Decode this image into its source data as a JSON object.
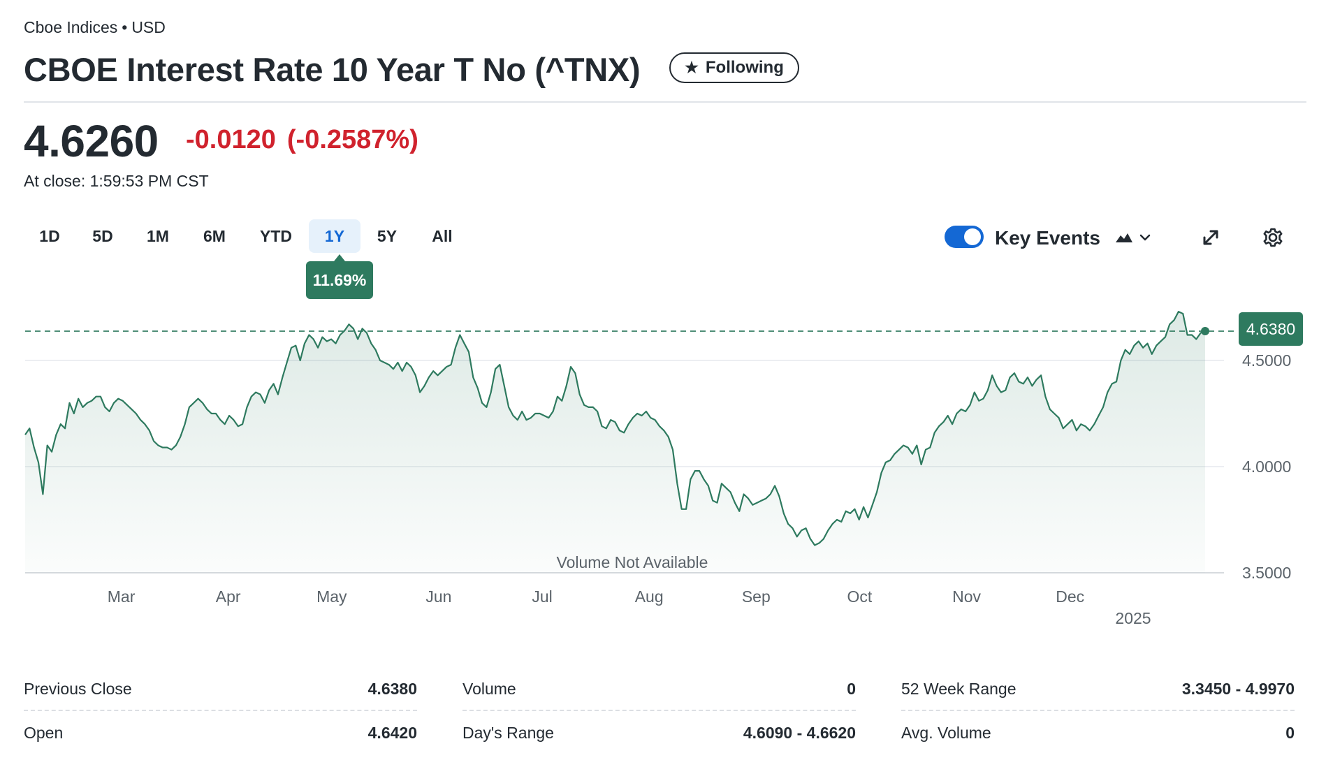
{
  "header": {
    "exchange": "Cboe Indices",
    "currency": "USD",
    "title": "CBOE Interest Rate 10 Year T No (^TNX)",
    "follow_label": "Following"
  },
  "quote": {
    "price": "4.6260",
    "change": "-0.0120",
    "change_percent": "(-0.2587%)",
    "close_time": "At close: 1:59:53 PM CST"
  },
  "range_tabs": [
    "1D",
    "5D",
    "1M",
    "6M",
    "YTD",
    "1Y",
    "5Y",
    "All"
  ],
  "active_range": "1Y",
  "range_return": "11.69%",
  "controls": {
    "key_events_label": "Key Events",
    "key_events_on": true
  },
  "colors": {
    "accent_green": "#2e7a5f",
    "negative_red": "#d0222d",
    "tab_active_blue": "#1468d4"
  },
  "chart_data": {
    "type": "area",
    "ylim": [
      3.45,
      4.72
    ],
    "y_ticks": [
      "4.5000",
      "4.0000",
      "3.5000"
    ],
    "y_tick_values": [
      4.5,
      4.0,
      3.5
    ],
    "x_month_labels": [
      "Mar",
      "Apr",
      "May",
      "Jun",
      "Jul",
      "Aug",
      "Sep",
      "Oct",
      "Nov",
      "Dec"
    ],
    "x_year_label": "2025",
    "previous_close_line": 4.638,
    "last_price_label": "4.6380",
    "volume_note": "Volume Not Available",
    "x_start": "2024-02-07",
    "x_end": "2025-01-14",
    "series": [
      {
        "values": [
          4.15,
          4.18,
          4.09,
          4.02,
          3.87,
          4.1,
          4.07,
          4.15,
          4.2,
          4.18,
          4.3,
          4.25,
          4.32,
          4.28,
          4.3,
          4.31,
          4.33,
          4.33,
          4.28,
          4.26,
          4.3,
          4.32,
          4.31,
          4.29,
          4.27,
          4.25,
          4.22,
          4.2,
          4.17,
          4.12,
          4.1,
          4.09,
          4.09,
          4.08,
          4.1,
          4.14,
          4.2,
          4.28,
          4.3,
          4.32,
          4.3,
          4.27,
          4.25,
          4.25,
          4.22,
          4.2,
          4.24,
          4.22,
          4.19,
          4.2,
          4.28,
          4.33,
          4.35,
          4.34,
          4.3,
          4.36,
          4.39,
          4.34,
          4.42,
          4.49,
          4.56,
          4.57,
          4.5,
          4.58,
          4.62,
          4.6,
          4.56,
          4.61,
          4.59,
          4.6,
          4.58,
          4.62,
          4.64,
          4.67,
          4.65,
          4.6,
          4.65,
          4.63,
          4.58,
          4.55,
          4.5,
          4.49,
          4.48,
          4.46,
          4.49,
          4.45,
          4.49,
          4.47,
          4.43,
          4.35,
          4.38,
          4.42,
          4.45,
          4.43,
          4.45,
          4.47,
          4.48,
          4.56,
          4.62,
          4.58,
          4.54,
          4.42,
          4.37,
          4.3,
          4.28,
          4.35,
          4.46,
          4.48,
          4.38,
          4.28,
          4.24,
          4.22,
          4.26,
          4.22,
          4.23,
          4.25,
          4.25,
          4.24,
          4.23,
          4.26,
          4.33,
          4.31,
          4.38,
          4.47,
          4.44,
          4.34,
          4.29,
          4.28,
          4.28,
          4.26,
          4.19,
          4.18,
          4.22,
          4.21,
          4.17,
          4.16,
          4.2,
          4.23,
          4.25,
          4.24,
          4.26,
          4.23,
          4.22,
          4.19,
          4.17,
          4.14,
          4.08,
          3.92,
          3.8,
          3.8,
          3.94,
          3.98,
          3.98,
          3.94,
          3.91,
          3.84,
          3.83,
          3.92,
          3.9,
          3.88,
          3.83,
          3.79,
          3.87,
          3.85,
          3.82,
          3.83,
          3.84,
          3.85,
          3.87,
          3.91,
          3.86,
          3.78,
          3.73,
          3.71,
          3.67,
          3.7,
          3.71,
          3.66,
          3.63,
          3.64,
          3.66,
          3.7,
          3.73,
          3.75,
          3.74,
          3.79,
          3.78,
          3.8,
          3.75,
          3.81,
          3.76,
          3.82,
          3.88,
          3.97,
          4.02,
          4.03,
          4.06,
          4.08,
          4.1,
          4.09,
          4.06,
          4.1,
          4.01,
          4.08,
          4.09,
          4.16,
          4.19,
          4.21,
          4.24,
          4.2,
          4.25,
          4.27,
          4.26,
          4.29,
          4.35,
          4.31,
          4.32,
          4.36,
          4.43,
          4.38,
          4.35,
          4.36,
          4.42,
          4.44,
          4.4,
          4.39,
          4.42,
          4.38,
          4.41,
          4.43,
          4.33,
          4.27,
          4.25,
          4.23,
          4.18,
          4.2,
          4.22,
          4.17,
          4.2,
          4.19,
          4.17,
          4.2,
          4.24,
          4.28,
          4.35,
          4.39,
          4.4,
          4.5,
          4.55,
          4.53,
          4.57,
          4.59,
          4.56,
          4.58,
          4.53,
          4.57,
          4.59,
          4.61,
          4.67,
          4.69,
          4.73,
          4.72,
          4.62,
          4.62,
          4.6,
          4.63,
          4.638
        ]
      }
    ]
  },
  "stats": [
    [
      {
        "label": "Previous Close",
        "value": "4.6380"
      },
      {
        "label": "Open",
        "value": "4.6420"
      }
    ],
    [
      {
        "label": "Volume",
        "value": "0"
      },
      {
        "label": "Day's Range",
        "value": "4.6090 - 4.6620"
      }
    ],
    [
      {
        "label": "52 Week Range",
        "value": "3.3450 - 4.9970"
      },
      {
        "label": "Avg. Volume",
        "value": "0"
      }
    ]
  ]
}
